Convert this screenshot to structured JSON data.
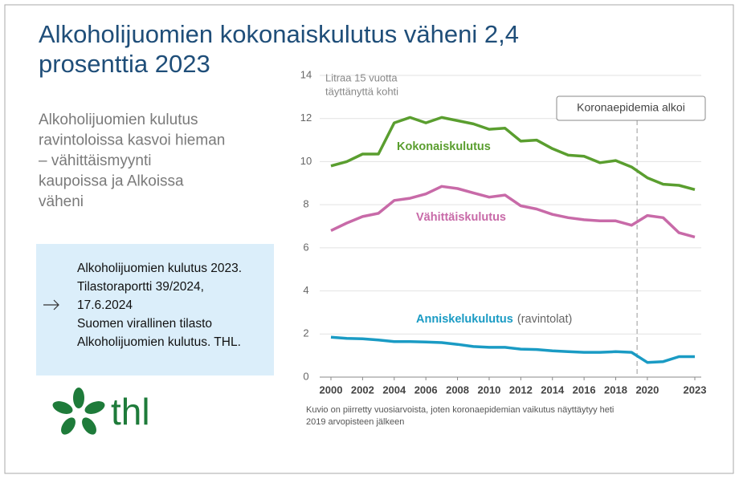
{
  "header": {
    "title": [
      "Alkoholijuomien kokonaiskulutus väheni 2,4",
      "prosenttia 2023"
    ],
    "subtitle": [
      "Alkoholijuomien kulutus",
      "ravintoloissa kasvoi hieman",
      "– vähittäismyynti",
      "kaupoissa ja Alkoissa",
      "väheni"
    ]
  },
  "source_box": {
    "lines": [
      "Alkoholijuomien kulutus 2023.",
      "Tilastoraportti 39/2024,",
      "17.6.2024",
      "Suomen virallinen tilasto",
      "Alkoholijuomien kulutus. THL."
    ]
  },
  "logo": "thl",
  "chart_data": {
    "type": "line",
    "y_label": [
      "Litraa 15 vuotta",
      "täyttänyttä kohti"
    ],
    "x": [
      2000,
      2001,
      2002,
      2003,
      2004,
      2005,
      2006,
      2007,
      2008,
      2009,
      2010,
      2011,
      2012,
      2013,
      2014,
      2015,
      2016,
      2017,
      2018,
      2019,
      2020,
      2021,
      2022,
      2023
    ],
    "series": [
      {
        "name": "Kokonaiskulutus",
        "color": "#5a9e2f",
        "values": [
          9.8,
          10.0,
          10.35,
          10.35,
          11.8,
          12.05,
          11.8,
          12.05,
          11.9,
          11.75,
          11.5,
          11.55,
          10.95,
          11.0,
          10.6,
          10.3,
          10.25,
          9.95,
          10.05,
          9.75,
          9.25,
          8.95,
          8.9,
          8.7
        ]
      },
      {
        "name": "Vähittäiskulutus",
        "color": "#c86aa8",
        "values": [
          6.8,
          7.15,
          7.45,
          7.6,
          8.2,
          8.3,
          8.5,
          8.85,
          8.75,
          8.55,
          8.35,
          8.45,
          7.95,
          7.8,
          7.55,
          7.4,
          7.3,
          7.25,
          7.25,
          7.05,
          7.5,
          7.4,
          6.7,
          6.5
        ]
      },
      {
        "name": "Anniskelukulutus",
        "note": "(ravintolat)",
        "color": "#1a9bc4",
        "values": [
          1.85,
          1.8,
          1.78,
          1.72,
          1.65,
          1.65,
          1.63,
          1.6,
          1.52,
          1.42,
          1.38,
          1.38,
          1.3,
          1.28,
          1.22,
          1.18,
          1.15,
          1.15,
          1.18,
          1.15,
          0.68,
          0.72,
          0.95,
          0.95
        ]
      }
    ],
    "xlim": [
      2000,
      2023
    ],
    "xticks": [
      2000,
      2002,
      2004,
      2006,
      2008,
      2010,
      2012,
      2014,
      2016,
      2018,
      2020,
      2023
    ],
    "ylim": [
      0,
      14
    ],
    "yticks": [
      0,
      2,
      4,
      6,
      8,
      10,
      12,
      14
    ],
    "grid": true,
    "annotation": {
      "text": "Koronaepidemia alkoi",
      "x": 2019.35
    },
    "footnote": [
      "Kuvio on piirretty vuosiarvoista, joten koronaepidemian vaikutus näyttäytyy heti",
      "2019 arvopisteen jälkeen"
    ]
  }
}
